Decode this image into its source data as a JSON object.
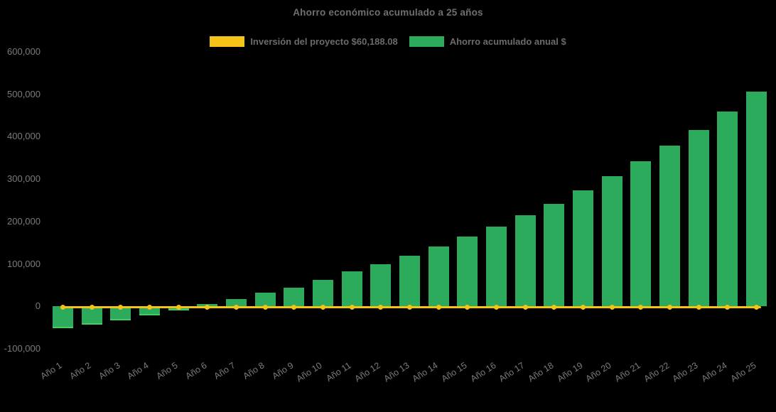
{
  "page": {
    "background": "#000000"
  },
  "chart_data": {
    "type": "bar",
    "title": "Ahorro económico acumulado a 25 años",
    "xlabel": "",
    "ylabel": "",
    "categories": [
      "Año 1",
      "Año 2",
      "Año 3",
      "Año 4",
      "Año 5",
      "Año 6",
      "Año 7",
      "Año 8",
      "Año 9",
      "Año 10",
      "Año 11",
      "Año 12",
      "Año 13",
      "Año 14",
      "Año 15",
      "Año 16",
      "Año 17",
      "Año 18",
      "Año 19",
      "Año 20",
      "Año 21",
      "Año 22",
      "Año 23",
      "Año 24",
      "Año 25"
    ],
    "series": [
      {
        "name": "Inversión del proyecto $60,188.08",
        "type": "line",
        "color": "#f3c318",
        "values": [
          0,
          0,
          0,
          0,
          0,
          0,
          0,
          0,
          0,
          0,
          0,
          0,
          0,
          0,
          0,
          0,
          0,
          0,
          0,
          0,
          0,
          0,
          0,
          0,
          0
        ]
      },
      {
        "name": "Ahorro acumulado anual $",
        "type": "bar",
        "color": "#2dab5c",
        "edge_color": "#43ce64",
        "values": [
          -52000,
          -43500,
          -33500,
          -22500,
          -10500,
          5000,
          18000,
          32000,
          45000,
          63000,
          82000,
          100000,
          120000,
          142000,
          164000,
          188500,
          214500,
          242500,
          273000,
          306500,
          341500,
          379000,
          416000,
          460000,
          506000
        ]
      }
    ],
    "ylim": [
      -100000,
      600000
    ],
    "yticks": [
      600000,
      500000,
      400000,
      300000,
      200000,
      100000,
      0,
      -100000
    ],
    "ytick_labels": [
      "600,000",
      "500,000",
      "400,000",
      "300,000",
      "200,000",
      "100,000",
      "0",
      "-100,000"
    ],
    "grid": false,
    "legend_position": "top",
    "colors": {
      "background": "#000000",
      "bar_green": "#2dab5c",
      "bar_edge_green": "#43ce64",
      "line_yellow": "#f3c318",
      "title_text": "#6f6f6f",
      "legend_text": "#6b6b6b",
      "axis_text": "#7b7b7b"
    }
  }
}
